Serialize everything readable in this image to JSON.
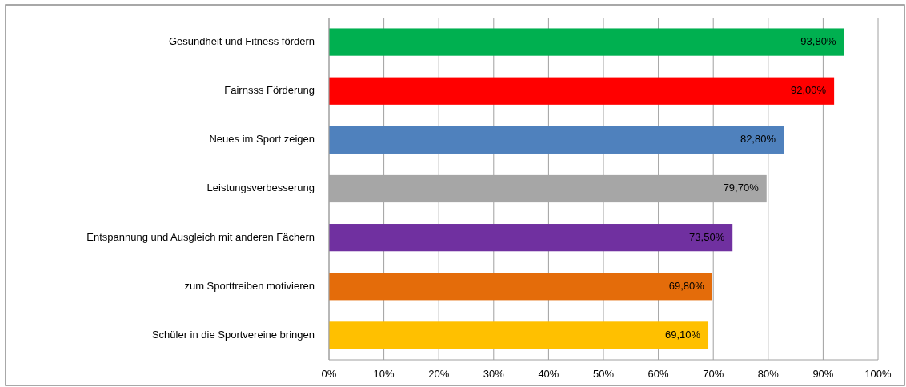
{
  "chart_data": {
    "type": "bar",
    "orientation": "horizontal",
    "categories": [
      "Gesundheit und Fitness fördern",
      "Fairnsss Förderung",
      "Neues im Sport zeigen",
      "Leistungsverbesserung",
      "Entspannung und Ausgleich mit anderen Fächern",
      "zum Sporttreiben motivieren",
      "Schüler in die Sportvereine bringen"
    ],
    "values": [
      93.8,
      92.0,
      82.8,
      79.7,
      73.5,
      69.8,
      69.1
    ],
    "value_labels": [
      "93,80%",
      "92,00%",
      "82,80%",
      "79,70%",
      "73,50%",
      "69,80%",
      "69,10%"
    ],
    "colors": [
      "#00b050",
      "#ff0000",
      "#4f81bd",
      "#a6a6a6",
      "#7030a0",
      "#e46c0a",
      "#ffc000"
    ],
    "xlim": [
      0,
      100
    ],
    "xticks": [
      {
        "value": 0,
        "label": "0%"
      },
      {
        "value": 10,
        "label": "10%"
      },
      {
        "value": 20,
        "label": "20%"
      },
      {
        "value": 30,
        "label": "30%"
      },
      {
        "value": 40,
        "label": "40%"
      },
      {
        "value": 50,
        "label": "50%"
      },
      {
        "value": 60,
        "label": "60%"
      },
      {
        "value": 70,
        "label": "70%"
      },
      {
        "value": 80,
        "label": "80%"
      },
      {
        "value": 90,
        "label": "90%"
      },
      {
        "value": 100,
        "label": "100%"
      }
    ],
    "grid": "x"
  }
}
